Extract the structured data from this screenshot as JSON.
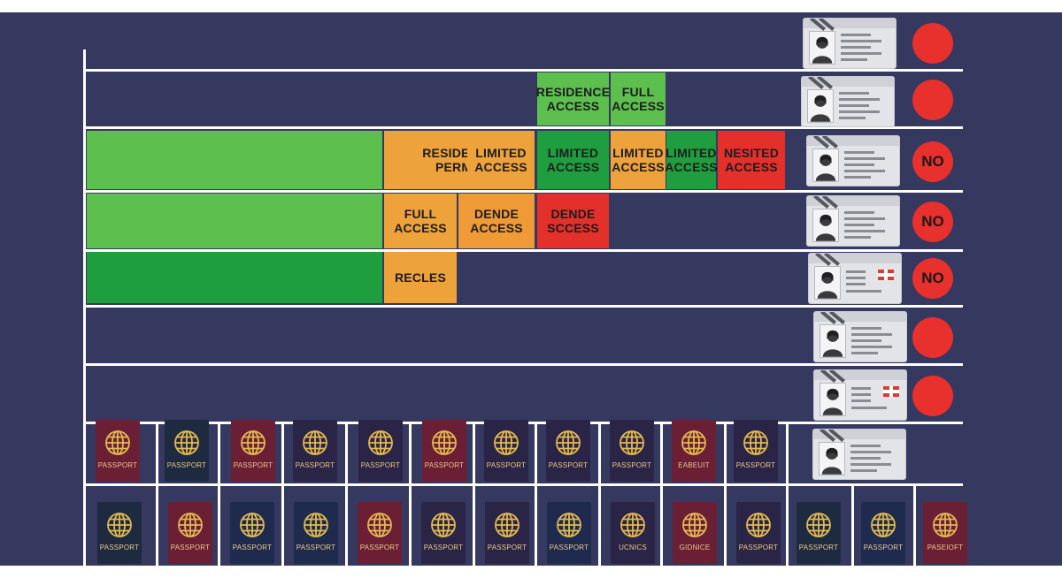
{
  "colors": {
    "background": "#35385f",
    "grid": "#ffffff",
    "light_green": "#5cbf4e",
    "dark_green": "#1f9e3f",
    "orange": "#eea23b",
    "red": "#e3302b",
    "passport_maroon": "#6b1f35",
    "passport_navy": "#1f2b4e",
    "passport_dark": "#2a2440",
    "passport_gold": "#e3b94f"
  },
  "rows": [
    {
      "cells": [],
      "status": {
        "label": ""
      }
    },
    {
      "cells": [
        {
          "label": "RESIDENCE\nACCESS",
          "color": "#5cbf4e"
        },
        {
          "label": "FULL\nACCESS",
          "color": "#5cbf4e"
        }
      ],
      "status": {
        "label": ""
      }
    },
    {
      "cells": [
        {
          "label": "",
          "color": "#5cbf4e"
        },
        {
          "label": "RESIDENCE\nPERMIT",
          "color": "#eea23b"
        },
        {
          "label": "LIMITED\nACCESS",
          "color": "#eea23b"
        },
        {
          "label": "LIMITED\nACCESS",
          "color": "#1f9e3f"
        },
        {
          "label": "LIMITED\nACCESS",
          "color": "#eea23b"
        },
        {
          "label": "LIMITED\nACCESS",
          "color": "#1f9e3f"
        },
        {
          "label": "NESITED\nACCESS",
          "color": "#e3302b"
        }
      ],
      "status": {
        "label": "NO"
      }
    },
    {
      "cells": [
        {
          "label": "",
          "color": "#5cbf4e"
        },
        {
          "label": "FULL\nACCESS",
          "color": "#eea23b"
        },
        {
          "label": "DENDE\nACCESS",
          "color": "#ee9a36"
        },
        {
          "label": "DENDE\nSCCESS",
          "color": "#e3302b"
        }
      ],
      "status": {
        "label": "NO"
      }
    },
    {
      "cells": [
        {
          "label": "",
          "color": "#1f9e3f"
        },
        {
          "label": "RECLES",
          "color": "#eea23b"
        }
      ],
      "status": {
        "label": "NO"
      }
    },
    {
      "cells": [],
      "status": {
        "label": ""
      }
    },
    {
      "cells": [],
      "status": {
        "label": ""
      }
    }
  ],
  "id_cards": [
    {
      "flag": false
    },
    {
      "flag": false
    },
    {
      "flag": false
    },
    {
      "flag": false
    },
    {
      "flag": true
    },
    {
      "flag": false
    },
    {
      "flag": true
    },
    {
      "flag": false
    }
  ],
  "passports_row1": [
    {
      "label": "PASSPORT",
      "color": "#6b1f35"
    },
    {
      "label": "PASSPORT",
      "color": "#1d2a40"
    },
    {
      "label": "PASSPORT",
      "color": "#6b1f35"
    },
    {
      "label": "PASSPORT",
      "color": "#2a2446"
    },
    {
      "label": "PASSPORT",
      "color": "#2a2446"
    },
    {
      "label": "PASSPORT",
      "color": "#6b1f35"
    },
    {
      "label": "PASSPORT",
      "color": "#2a2446"
    },
    {
      "label": "PASSPORT",
      "color": "#2a2446"
    },
    {
      "label": "PASSPORT",
      "color": "#2a2446"
    },
    {
      "label": "EABEUIT",
      "color": "#6b1f35"
    },
    {
      "label": "PASSPORT",
      "color": "#2a2446"
    }
  ],
  "passports_row2": [
    {
      "label": "PASSPORT",
      "color": "#1d2a40"
    },
    {
      "label": "PASSPORT",
      "color": "#6b1f35"
    },
    {
      "label": "PASSPORT",
      "color": "#1f2b4e"
    },
    {
      "label": "PASSPORT",
      "color": "#1f2b4e"
    },
    {
      "label": "PASSPORT",
      "color": "#6b1f35"
    },
    {
      "label": "PASSPORT",
      "color": "#2a2446"
    },
    {
      "label": "PASSPORT",
      "color": "#2a2446"
    },
    {
      "label": "PASSPORT",
      "color": "#1f2b4e"
    },
    {
      "label": "UCNICS",
      "color": "#2a2446"
    },
    {
      "label": "GIDNICE",
      "color": "#6b1f35"
    },
    {
      "label": "PASSPORT",
      "color": "#2a2446"
    },
    {
      "label": "PASSPORT",
      "color": "#1d2a40"
    },
    {
      "label": "PASSPORT",
      "color": "#1f2b4e"
    },
    {
      "label": "PASEIOFT",
      "color": "#6b1f35"
    }
  ]
}
